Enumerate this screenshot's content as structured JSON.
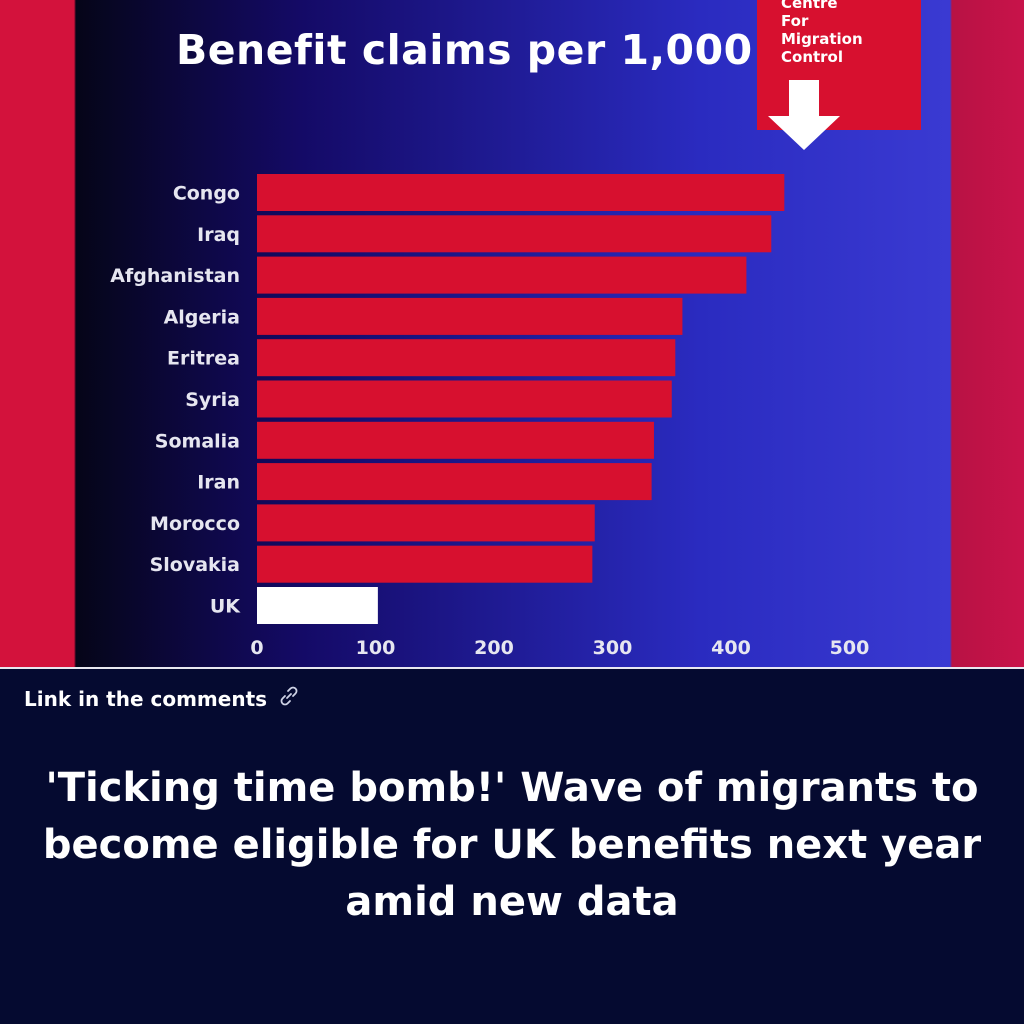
{
  "chart_data": {
    "type": "bar",
    "orientation": "horizontal",
    "title": "Benefit claims per 1,000",
    "categories": [
      "Congo",
      "Iraq",
      "Afghanistan",
      "Algeria",
      "Eritrea",
      "Syria",
      "Somalia",
      "Iran",
      "Morocco",
      "Slovakia",
      "UK"
    ],
    "values": [
      445,
      434,
      413,
      359,
      353,
      350,
      335,
      333,
      285,
      283,
      102
    ],
    "xlim": [
      0,
      500
    ],
    "xticks": [
      "0",
      "100",
      "200",
      "300",
      "400",
      "500"
    ],
    "colors": {
      "bar": "#d7102f",
      "highlight_bar": "#ffffff",
      "highlight_category": "UK"
    },
    "grid": false
  },
  "source": {
    "text": "Centre\nFor\nMigration\nControl",
    "icon": "down-arrow-icon"
  },
  "caption": {
    "link_text": "Link in the comments",
    "link_icon": "link-icon",
    "headline": "'Ticking time bomb!' Wave of migrants to become eligible for UK benefits next year amid new data"
  }
}
